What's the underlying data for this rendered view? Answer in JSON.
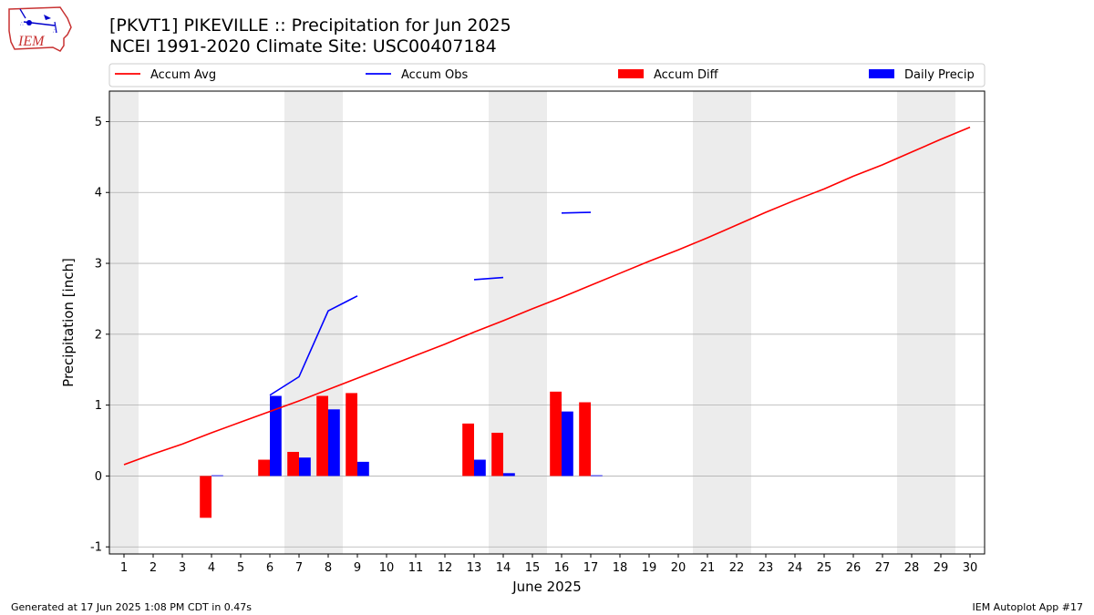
{
  "logo": {
    "text": "IEM"
  },
  "header": {
    "title": "[PKVT1] PIKEVILLE :: Precipitation for Jun 2025",
    "subtitle": "NCEI 1991-2020 Climate Site: USC00407184"
  },
  "footer": {
    "generated": "Generated at 17 Jun 2025 1:08 PM CDT in 0.47s",
    "app": "IEM Autoplot App #17"
  },
  "chart_data": {
    "type": "bar",
    "xlabel": "June 2025",
    "ylabel": "Precipitation [inch]",
    "xlim": [
      0.5,
      30.5
    ],
    "ylim": [
      -1.1,
      5.43
    ],
    "x_ticks": [
      1,
      2,
      3,
      4,
      5,
      6,
      7,
      8,
      9,
      10,
      11,
      12,
      13,
      14,
      15,
      16,
      17,
      18,
      19,
      20,
      21,
      22,
      23,
      24,
      25,
      26,
      27,
      28,
      29,
      30
    ],
    "y_ticks": [
      -1,
      0,
      1,
      2,
      3,
      4,
      5
    ],
    "grid": "horizontal",
    "legend_position": "top",
    "weekend_shading": [
      [
        0.5,
        1.5
      ],
      [
        6.5,
        8.5
      ],
      [
        13.5,
        15.5
      ],
      [
        20.5,
        22.5
      ],
      [
        27.5,
        29.5
      ]
    ],
    "shading_color": "#ececec",
    "series": [
      {
        "name": "Accum Avg",
        "kind": "line",
        "color": "#ff0000",
        "x": [
          1,
          2,
          3,
          4,
          5,
          6,
          7,
          8,
          9,
          10,
          11,
          12,
          13,
          14,
          15,
          16,
          17,
          18,
          19,
          20,
          21,
          22,
          23,
          24,
          25,
          26,
          27,
          28,
          29,
          30
        ],
        "values": [
          0.16,
          0.31,
          0.45,
          0.61,
          0.76,
          0.91,
          1.06,
          1.22,
          1.38,
          1.54,
          1.7,
          1.86,
          2.03,
          2.19,
          2.36,
          2.52,
          2.69,
          2.86,
          3.03,
          3.19,
          3.36,
          3.54,
          3.72,
          3.89,
          4.05,
          4.23,
          4.39,
          4.57,
          4.75,
          4.92
        ]
      },
      {
        "name": "Accum Obs",
        "kind": "line-segments",
        "color": "#0000ff",
        "segments": [
          [
            [
              6,
              1.14
            ],
            [
              7,
              1.4
            ],
            [
              8,
              2.33
            ],
            [
              9,
              2.54
            ]
          ],
          [
            [
              13,
              2.77
            ],
            [
              14,
              2.8
            ]
          ],
          [
            [
              16,
              3.71
            ],
            [
              17,
              3.72
            ]
          ]
        ]
      },
      {
        "name": "Accum Diff",
        "kind": "bar",
        "color": "#ff0000",
        "x": [
          4,
          6,
          7,
          8,
          9,
          13,
          14,
          16,
          17
        ],
        "values": [
          -0.59,
          0.23,
          0.34,
          1.13,
          1.17,
          0.74,
          0.61,
          1.19,
          1.04
        ]
      },
      {
        "name": "Daily Precip",
        "kind": "bar",
        "color": "#0000ff",
        "x": [
          4,
          6,
          7,
          8,
          9,
          13,
          14,
          16,
          17
        ],
        "values": [
          0.01,
          1.13,
          0.26,
          0.94,
          0.2,
          0.23,
          0.04,
          0.91,
          0.01
        ]
      }
    ]
  }
}
